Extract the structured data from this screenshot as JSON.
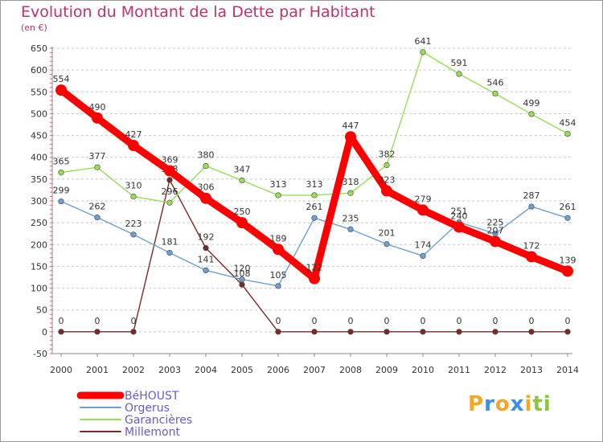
{
  "chart_data": {
    "type": "line",
    "title": "Evolution du Montant de la Dette par Habitant",
    "subtitle": "(en €)",
    "xlabel": "",
    "ylabel": "",
    "x": [
      "2000",
      "2001",
      "2002",
      "2003",
      "2004",
      "2005",
      "2006",
      "2007",
      "2008",
      "2009",
      "2010",
      "2011",
      "2012",
      "2013",
      "2014"
    ],
    "ylim": [
      -50,
      650
    ],
    "yticks": [
      -50,
      0,
      50,
      100,
      150,
      200,
      250,
      300,
      350,
      400,
      450,
      500,
      550,
      600,
      650
    ],
    "grid": "horizontal dashed",
    "legend": "bottom-left",
    "series": [
      {
        "name": "BéHOUST",
        "color": "#ff0000",
        "values": [
          554,
          490,
          427,
          369,
          306,
          250,
          189,
          122,
          447,
          323,
          279,
          240,
          207,
          172,
          139
        ]
      },
      {
        "name": "Orgerus",
        "color": "#6f9fd0",
        "values": [
          299,
          262,
          223,
          181,
          141,
          120,
          105,
          261,
          235,
          201,
          174,
          251,
          225,
          287,
          261
        ]
      },
      {
        "name": "Garancières",
        "color": "#99dd55",
        "values": [
          365,
          377,
          310,
          296,
          380,
          347,
          313,
          313,
          318,
          382,
          641,
          591,
          546,
          499,
          454
        ]
      },
      {
        "name": "Millemont",
        "color": "#7a2a2a",
        "values": [
          0,
          0,
          0,
          348,
          192,
          108,
          0,
          0,
          0,
          0,
          0,
          0,
          0,
          0,
          0
        ]
      }
    ]
  },
  "brand": {
    "letters": [
      "P",
      "r",
      "o",
      "x",
      "i",
      "t",
      "i"
    ],
    "colors": [
      "#f5a623",
      "#3a8ee6",
      "#f5a623",
      "#3a8ee6",
      "#f5a623",
      "#8cc63f",
      "#8cc63f"
    ]
  }
}
